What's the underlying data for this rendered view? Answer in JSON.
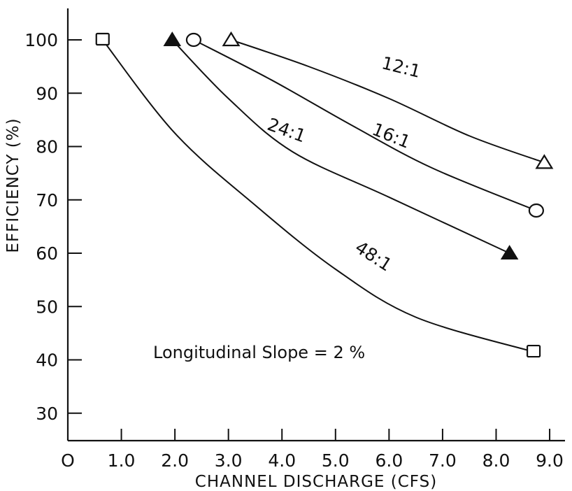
{
  "chart_data": {
    "type": "line",
    "xlabel": "CHANNEL  DISCHARGE (CFS)",
    "ylabel": "EFFICIENCY (%)",
    "xlim": [
      0,
      9.0
    ],
    "ylim": [
      25,
      110
    ],
    "x_ticks": [
      0,
      1.0,
      2.0,
      3.0,
      4.0,
      5.0,
      6.0,
      7.0,
      8.0,
      9.0
    ],
    "x_tick_labels": [
      "O",
      "1.0",
      "2.0",
      "3.0",
      "4.0",
      "5.0",
      "6.0",
      "7.0",
      "8.0",
      "9.0"
    ],
    "y_ticks": [
      30,
      40,
      50,
      60,
      70,
      80,
      90,
      100
    ],
    "y_tick_labels": [
      "30",
      "40",
      "50",
      "60",
      "70",
      "80",
      "90",
      "100"
    ],
    "grid": false,
    "annotation": "Longitudinal  Slope  =  2 %",
    "series": [
      {
        "name": "12:1",
        "marker": "open-triangle",
        "points": [
          [
            3.05,
            100
          ],
          [
            8.9,
            77
          ]
        ],
        "curve": [
          [
            3.05,
            100
          ],
          [
            4.5,
            95
          ],
          [
            6.0,
            89
          ],
          [
            7.5,
            82
          ],
          [
            8.9,
            77
          ]
        ],
        "label_at": [
          6.2,
          93.8
        ],
        "label_rotate": 14
      },
      {
        "name": "16:1",
        "marker": "open-circle",
        "points": [
          [
            2.35,
            100
          ],
          [
            8.75,
            68
          ]
        ],
        "curve": [
          [
            2.35,
            100
          ],
          [
            3.8,
            92.5
          ],
          [
            5.3,
            84
          ],
          [
            6.8,
            76
          ],
          [
            8.75,
            68
          ]
        ],
        "label_at": [
          6.0,
          81
        ],
        "label_rotate": 22
      },
      {
        "name": "24:1",
        "marker": "filled-triangle",
        "points": [
          [
            1.95,
            100
          ],
          [
            8.25,
            60
          ]
        ],
        "curve": [
          [
            1.95,
            100
          ],
          [
            3.0,
            89
          ],
          [
            4.2,
            79
          ],
          [
            6.0,
            70.5
          ],
          [
            8.25,
            60
          ]
        ],
        "label_at": [
          4.05,
          82
        ],
        "label_rotate": 20
      },
      {
        "name": "48:1",
        "marker": "open-square",
        "points": [
          [
            0.65,
            100
          ],
          [
            8.7,
            41.5
          ]
        ],
        "curve": [
          [
            0.65,
            100
          ],
          [
            2.0,
            82.5
          ],
          [
            3.5,
            69
          ],
          [
            5.0,
            57
          ],
          [
            6.5,
            48
          ],
          [
            8.7,
            41.5
          ]
        ],
        "label_at": [
          5.65,
          58.5
        ],
        "label_rotate": 33
      }
    ]
  }
}
